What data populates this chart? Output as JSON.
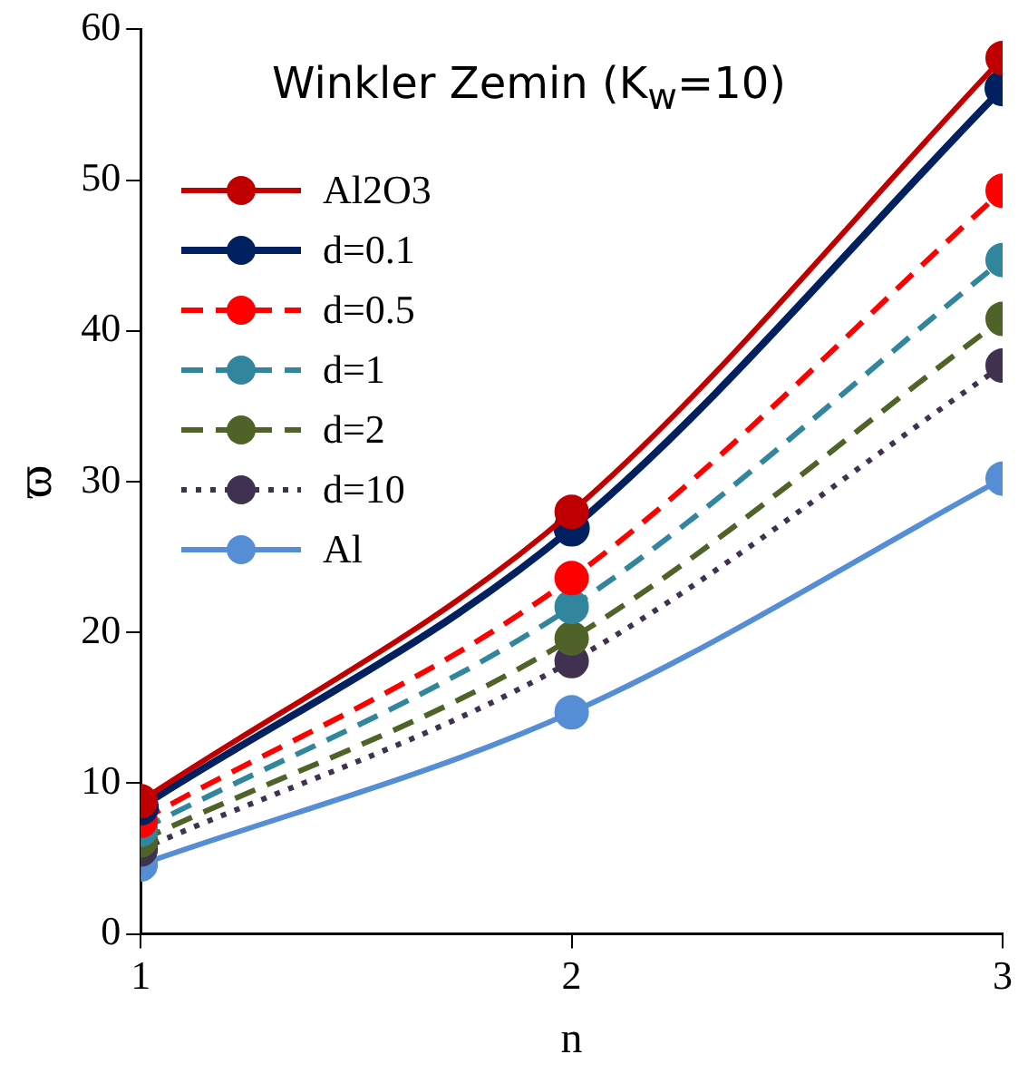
{
  "chart_data": {
    "type": "line",
    "title": "Winkler Zemin (K$_{w}$=10)",
    "xlabel": "n",
    "ylabel": "ϖ",
    "x": [
      1,
      2,
      3
    ],
    "xlim": [
      1,
      3
    ],
    "xticks": [
      1,
      2,
      3
    ],
    "ylim": [
      0,
      60
    ],
    "yticks": [
      0,
      10,
      20,
      30,
      40,
      50,
      60
    ],
    "grid": false,
    "legend": "top left",
    "marker": "circle",
    "series": [
      {
        "name": "Al2O3",
        "color": "#c00000",
        "line_style": "solid",
        "values": [
          8.8,
          28.0,
          58.1
        ]
      },
      {
        "name": "d=0.1",
        "color": "#002060",
        "line_style": "solid",
        "values": [
          8.4,
          26.9,
          56.1
        ]
      },
      {
        "name": "d=0.5",
        "color": "#ff0000",
        "line_style": "dashed",
        "values": [
          7.5,
          23.6,
          49.3
        ]
      },
      {
        "name": "d=1",
        "color": "#31859c",
        "line_style": "dashed",
        "values": [
          6.9,
          21.7,
          44.7
        ]
      },
      {
        "name": "d=2",
        "color": "#4f6228",
        "line_style": "dashed",
        "values": [
          6.2,
          19.6,
          40.8
        ]
      },
      {
        "name": "d=10",
        "color": "#403151",
        "line_style": "dotted",
        "values": [
          5.6,
          18.1,
          37.7
        ]
      },
      {
        "name": "Al",
        "color": "#558ed5",
        "line_style": "solid",
        "values": [
          4.6,
          14.7,
          30.2
        ]
      }
    ]
  }
}
